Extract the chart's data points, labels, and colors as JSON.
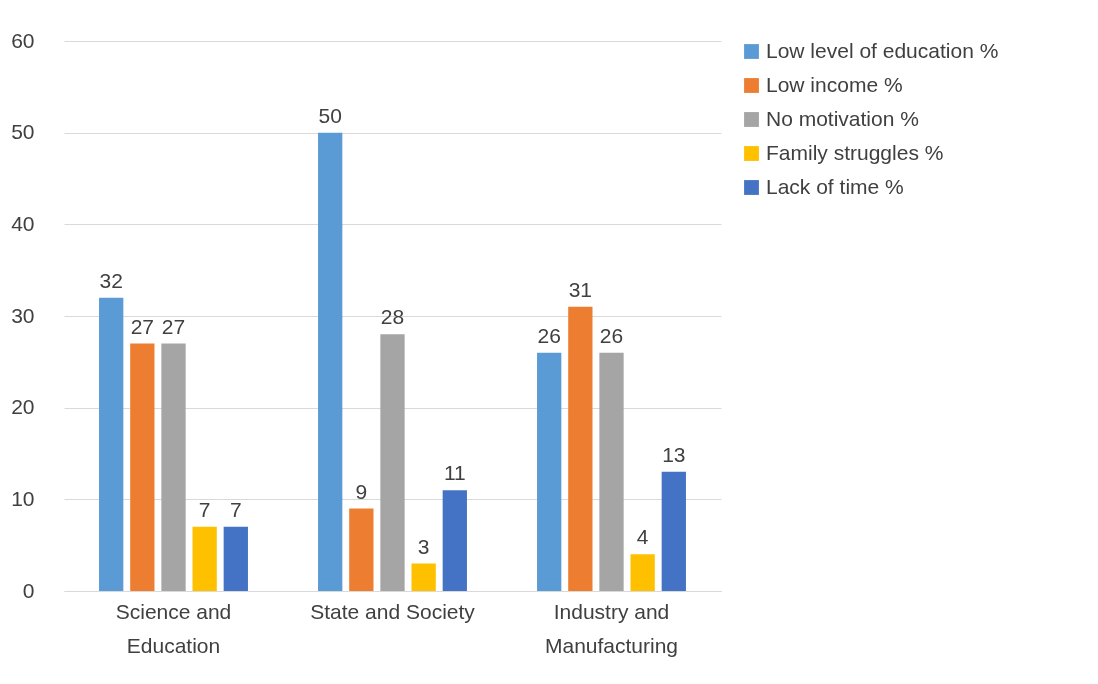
{
  "chart_data": {
    "type": "bar",
    "categories": [
      "Science and Education",
      "State and Society",
      "Industry and Manufacturing"
    ],
    "series": [
      {
        "name": "Low level of education %",
        "color": "#5b9bd5",
        "values": [
          32,
          50,
          26
        ]
      },
      {
        "name": "Low income %",
        "color": "#ed7d31",
        "values": [
          27,
          9,
          31
        ]
      },
      {
        "name": "No motivation %",
        "color": "#a5a5a5",
        "values": [
          27,
          28,
          26
        ]
      },
      {
        "name": "Family struggles %",
        "color": "#ffc000",
        "values": [
          7,
          3,
          4
        ]
      },
      {
        "name": "Lack of time %",
        "color": "#4472c4",
        "values": [
          7,
          11,
          13
        ]
      }
    ],
    "ylim": [
      0,
      60
    ],
    "yticks": [
      0,
      10,
      20,
      30,
      40,
      50,
      60
    ],
    "grid": "y",
    "legend": "right",
    "data_labels": true
  }
}
